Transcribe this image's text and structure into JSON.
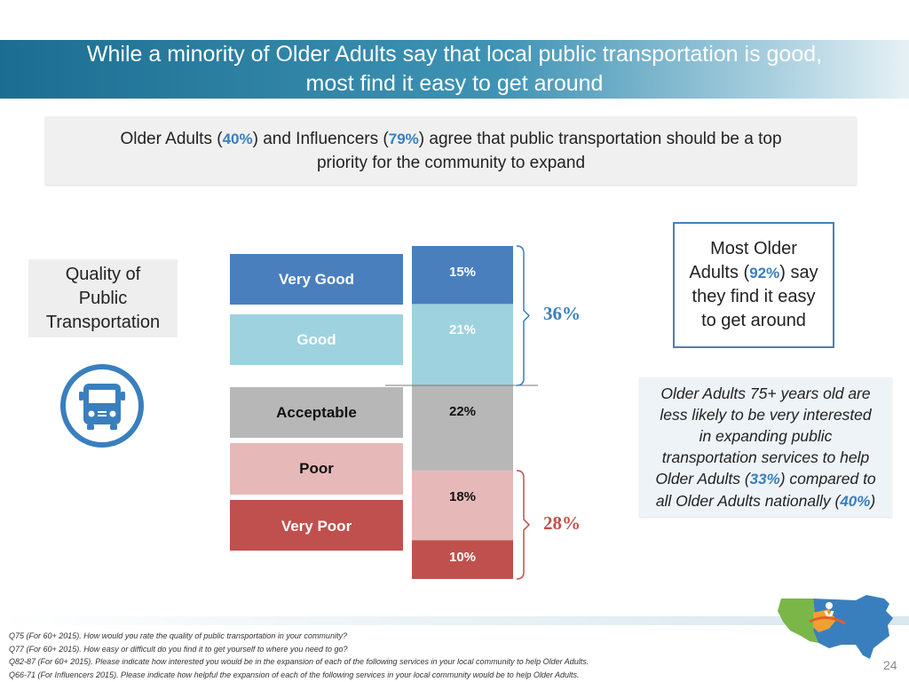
{
  "title": {
    "line1": "While a minority of Older Adults say that local public transportation is good,",
    "line2": "most find it easy to get around"
  },
  "callout": {
    "p1": "Older Adults (",
    "v1": "40%",
    "p2": ") and Influencers (",
    "v2": "79%",
    "p3": ") agree that public transportation should be a top",
    "line2": "priority for the community to expand"
  },
  "quality_box": {
    "line1": "Quality of",
    "line2": "Public",
    "line3": "Transportation"
  },
  "icons": {
    "bus": "bus-icon",
    "logo": "us-map-logo-icon"
  },
  "colors": {
    "title_band": "#1b6e91",
    "very_good": "#4a7fbe",
    "good": "#9ed2df",
    "acceptable": "#b7b7b7",
    "poor": "#e6b9b8",
    "very_poor": "#c0504d",
    "accent_blue": "#3a7fbd",
    "accent_red": "#c0504d"
  },
  "chart_data": {
    "type": "bar",
    "stacked": true,
    "title": "",
    "categories": [
      "Very Good",
      "Good",
      "Acceptable",
      "Poor",
      "Very Poor"
    ],
    "values": [
      15,
      21,
      22,
      18,
      10
    ],
    "value_labels": [
      "15%",
      "21%",
      "22%",
      "18%",
      "10%"
    ],
    "groups": [
      {
        "label": "36%",
        "members": [
          "Very Good",
          "Good"
        ],
        "value": 36
      },
      {
        "label": "28%",
        "members": [
          "Poor",
          "Very Poor"
        ],
        "value": 28
      }
    ],
    "legend_position": "left",
    "grid": false
  },
  "most_box": {
    "line1": "Most Older",
    "l2a": "Adults (",
    "v": "92%",
    "l2b": ") say",
    "line3": "they find it easy",
    "line4": "to get around"
  },
  "note_box": {
    "line1": "Older Adults 75+ years old are",
    "line2": "less likely to be very interested",
    "line3": "in expanding public",
    "line4": "transportation services to help",
    "l5a": "Older Adults (",
    "v1": "33%",
    "l5b": ") compared to",
    "l6a": "all Older Adults nationally (",
    "v2": "40%",
    "l6b": ")"
  },
  "footnotes": [
    "Q75 (For 60+ 2015). How would you rate the quality of public transportation in your community?",
    "Q77 (For 60+ 2015). How easy or difficult do you find it to get yourself to where you need to go?",
    "Q82-87 (For 60+ 2015). Please indicate how interested you would be in the expansion of each of the following services in your local community to help Older Adults.",
    "Q66-71 (For Influencers 2015). Please indicate how helpful the expansion of each of the following services in your local community would be to help Older Adults."
  ],
  "page_number": "24"
}
